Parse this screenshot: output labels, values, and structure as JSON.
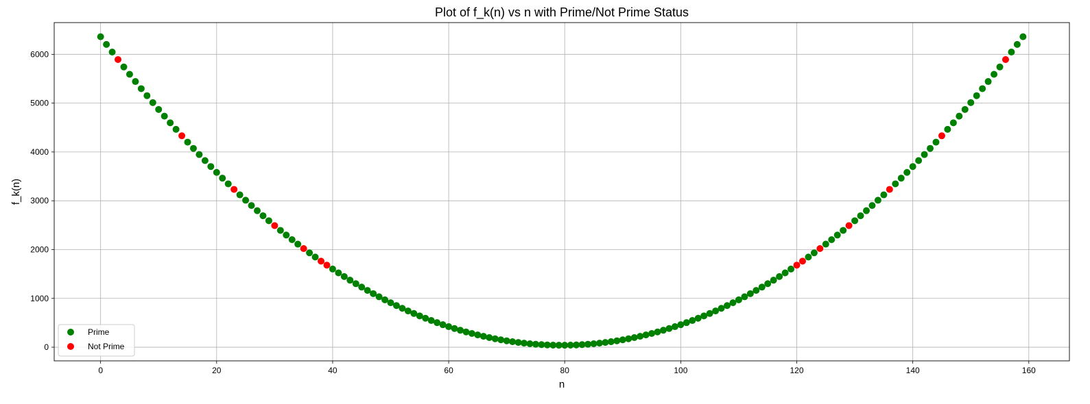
{
  "chart_data": {
    "type": "scatter",
    "title": "Plot of f_k(n) vs n with Prime/Not Prime Status",
    "xlabel": "n",
    "ylabel": "f_k(n)",
    "xlim": [
      -8,
      167
    ],
    "ylim": [
      -280,
      6650
    ],
    "xticks": [
      0,
      20,
      40,
      60,
      80,
      100,
      120,
      140,
      160
    ],
    "yticks": [
      0,
      1000,
      2000,
      3000,
      4000,
      5000,
      6000
    ],
    "grid": true,
    "legend_position": "bottom-left",
    "colors": {
      "prime": "#008000",
      "not_prime": "#ff0000"
    },
    "series": [
      {
        "name": "Prime",
        "x": [
          0,
          1,
          2,
          4,
          5,
          6,
          7,
          8,
          9,
          10,
          11,
          12,
          13,
          15,
          16,
          17,
          18,
          19,
          20,
          21,
          22,
          24,
          25,
          26,
          27,
          28,
          29,
          31,
          32,
          33,
          34,
          36,
          37,
          40,
          41,
          42,
          43,
          44,
          45,
          46,
          47,
          48,
          49,
          50,
          51,
          52,
          53,
          54,
          55,
          56,
          57,
          58,
          59,
          60,
          61,
          62,
          63,
          64,
          65,
          66,
          67,
          68,
          69,
          70,
          71,
          72,
          73,
          74,
          75,
          76,
          77,
          78,
          79,
          80,
          81,
          82,
          83,
          84,
          85,
          86,
          87,
          88,
          89,
          90,
          91,
          92,
          93,
          94,
          95,
          96,
          97,
          98,
          99,
          100,
          101,
          102,
          103,
          104,
          105,
          106,
          107,
          108,
          109,
          110,
          111,
          112,
          113,
          114,
          115,
          116,
          117,
          118,
          119,
          122,
          123,
          125,
          126,
          127,
          128,
          130,
          131,
          132,
          133,
          134,
          135,
          137,
          138,
          139,
          140,
          141,
          142,
          143,
          144,
          146,
          147,
          148,
          149,
          150,
          151,
          152,
          153,
          154,
          155,
          157,
          158,
          159
        ],
        "y": [
          6361,
          6203,
          6047,
          5741,
          5591,
          5443,
          5297,
          5153,
          5011,
          4871,
          4733,
          4597,
          4463,
          4201,
          4073,
          3947,
          3823,
          3701,
          3581,
          3463,
          3347,
          3121,
          3011,
          2903,
          2797,
          2693,
          2591,
          2393,
          2297,
          2203,
          2111,
          1933,
          1847,
          1601,
          1523,
          1447,
          1373,
          1301,
          1231,
          1163,
          1097,
          1033,
          971,
          911,
          853,
          797,
          743,
          691,
          641,
          593,
          547,
          503,
          461,
          421,
          383,
          347,
          313,
          281,
          251,
          223,
          197,
          173,
          151,
          131,
          113,
          97,
          83,
          71,
          61,
          53,
          47,
          43,
          41,
          41,
          43,
          47,
          53,
          61,
          71,
          83,
          97,
          113,
          131,
          151,
          173,
          197,
          223,
          251,
          281,
          313,
          347,
          383,
          421,
          461,
          503,
          547,
          593,
          641,
          691,
          743,
          797,
          853,
          911,
          971,
          1033,
          1097,
          1163,
          1231,
          1301,
          1373,
          1447,
          1523,
          1601,
          1847,
          1933,
          2111,
          2203,
          2297,
          2393,
          2591,
          2693,
          2797,
          2903,
          3011,
          3121,
          3347,
          3463,
          3581,
          3701,
          3823,
          3947,
          4073,
          4201,
          4463,
          4597,
          4733,
          4871,
          5011,
          5153,
          5297,
          5443,
          5591,
          5741,
          6047,
          6203,
          6361
        ]
      },
      {
        "name": "Not Prime",
        "x": [
          3,
          14,
          23,
          30,
          35,
          38,
          39,
          120,
          121,
          124,
          129,
          136,
          145,
          156
        ],
        "y": [
          5893,
          4331,
          3233,
          2491,
          2021,
          1763,
          1681,
          1681,
          1763,
          2021,
          2491,
          3233,
          4331,
          5893
        ]
      }
    ]
  }
}
